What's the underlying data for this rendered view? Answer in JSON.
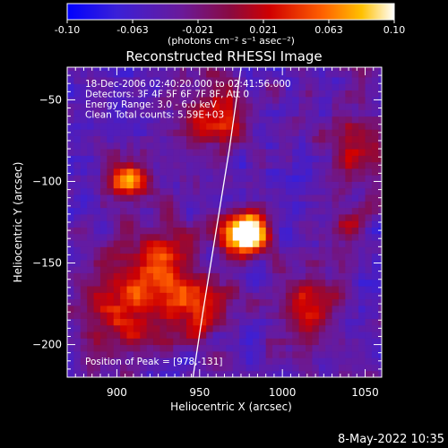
{
  "chart_data": {
    "type": "heatmap",
    "title": "Reconstructed RHESSI Image",
    "xlabel": "Heliocentric X (arcsec)",
    "ylabel": "Heliocentric Y (arcsec)",
    "xlim": [
      870,
      1060
    ],
    "ylim": [
      -220,
      -30
    ],
    "xticks": [
      900,
      950,
      1000,
      1050
    ],
    "yticks": [
      -50,
      -100,
      -150,
      -200
    ],
    "colorbar": {
      "min": -0.1,
      "max": 0.1,
      "ticks": [
        "-0.10",
        "-0.063",
        "-0.021",
        "0.021",
        "0.063",
        "0.10"
      ],
      "unit_label": "(photons cm⁻² s⁻¹ asec⁻²)",
      "colormap": [
        "#0000ff",
        "#5a20c0",
        "#7a0a6a",
        "#c00000",
        "#ff6000",
        "#ffc000",
        "#ffffff"
      ]
    },
    "annotations": [
      "18-Dec-2006 02:40:20.000 to 02:41:56.000",
      "Detectors: 3F 4F 5F 6F 7F 8F, Att 0",
      "Energy Range: 3.0 - 6.0 keV",
      "Clean      Total counts: 5.59E+03"
    ],
    "peak_label": "Position of Peak = [978,-131]",
    "peak": {
      "x": 978,
      "y": -131,
      "value": 0.1
    },
    "bright_sources": [
      {
        "x": 978,
        "y": -131,
        "amp": 1.0,
        "sigma": 9
      },
      {
        "x": 908,
        "y": -98,
        "amp": 0.55,
        "sigma": 8
      },
      {
        "x": 925,
        "y": -150,
        "amp": 0.45,
        "sigma": 16
      },
      {
        "x": 950,
        "y": -180,
        "amp": 0.42,
        "sigma": 12
      },
      {
        "x": 905,
        "y": -180,
        "amp": 0.35,
        "sigma": 18
      },
      {
        "x": 960,
        "y": -60,
        "amp": 0.4,
        "sigma": 14
      },
      {
        "x": 1045,
        "y": -80,
        "amp": 0.35,
        "sigma": 12
      },
      {
        "x": 1015,
        "y": -175,
        "amp": 0.3,
        "sigma": 14
      },
      {
        "x": 1040,
        "y": -125,
        "amp": 0.22,
        "sigma": 10
      }
    ],
    "limb_curve": [
      [
        975,
        -30
      ],
      [
        968,
        -80
      ],
      [
        960,
        -130
      ],
      [
        952,
        -180
      ],
      [
        946,
        -220
      ]
    ]
  },
  "footer_date": "8-May-2022 10:35"
}
